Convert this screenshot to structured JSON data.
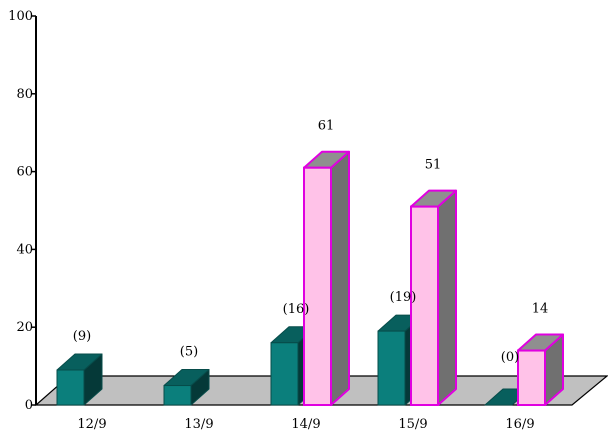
{
  "chart_data": {
    "type": "bar",
    "categories": [
      "12/9",
      "13/9",
      "14/9",
      "15/9",
      "16/9"
    ],
    "series": [
      {
        "values": [
          9,
          5,
          16,
          19,
          0
        ],
        "labels": [
          "(9)",
          "(5)",
          "(16)",
          "(19)",
          "(0)"
        ],
        "color": "#0b7f7c"
      },
      {
        "values": [
          null,
          null,
          61,
          51,
          14
        ],
        "labels": [
          "",
          "",
          "61",
          "51",
          "14"
        ],
        "color": "#ffc2e8",
        "edge": "#e000e0"
      }
    ],
    "ylim": [
      0,
      100
    ],
    "yticks": [
      0,
      20,
      40,
      60,
      80,
      100
    ],
    "three_d": true,
    "floor_color": "#c0c0c0",
    "grid": false
  }
}
